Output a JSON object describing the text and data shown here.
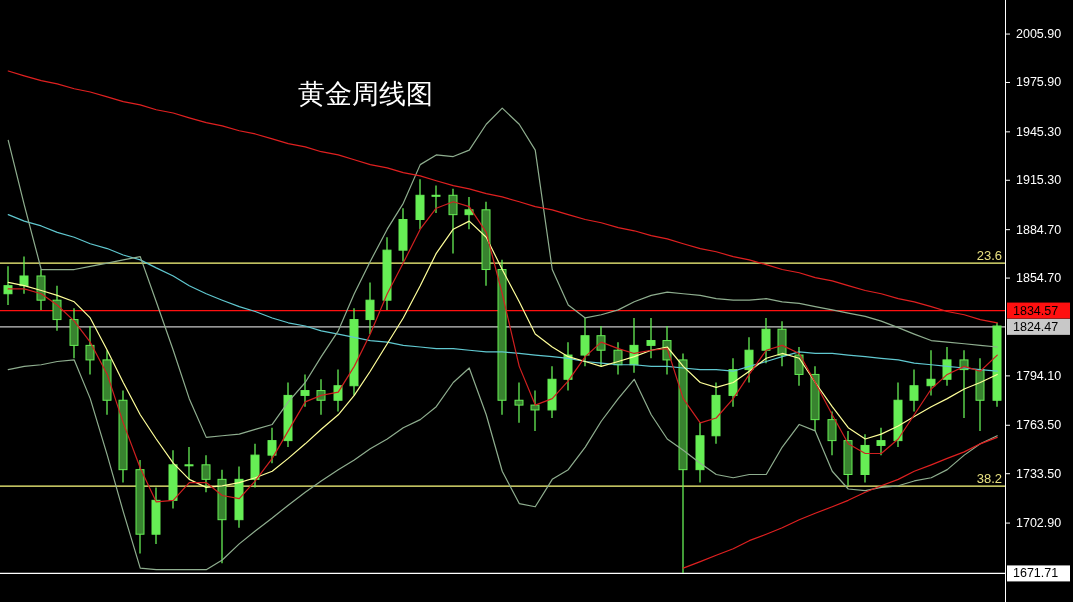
{
  "chart_data": {
    "type": "candlestick",
    "title": "黄金周线图",
    "color": "#66ee55",
    "categories": [
      null,
      null,
      null,
      null,
      null,
      null,
      null,
      null,
      null,
      null,
      null,
      null,
      null,
      null,
      null,
      null,
      null,
      null,
      null,
      null,
      null,
      null,
      null,
      null,
      null,
      null,
      null,
      null,
      null,
      null,
      null,
      null,
      null,
      null,
      null,
      null,
      null,
      null,
      null,
      null,
      null,
      null,
      null,
      null,
      null,
      null,
      null,
      null,
      null,
      null,
      null,
      null,
      null,
      null,
      null,
      null,
      null,
      null,
      null,
      null,
      null
    ],
    "ohlc": [
      [
        1845,
        1862,
        1838,
        1850
      ],
      [
        1850,
        1868,
        1845,
        1856
      ],
      [
        1856,
        1860,
        1835,
        1841
      ],
      [
        1841,
        1850,
        1822,
        1829
      ],
      [
        1829,
        1836,
        1805,
        1813
      ],
      [
        1813,
        1825,
        1795,
        1804
      ],
      [
        1804,
        1810,
        1770,
        1779
      ],
      [
        1779,
        1785,
        1728,
        1736
      ],
      [
        1736,
        1742,
        1684,
        1696
      ],
      [
        1696,
        1725,
        1690,
        1717
      ],
      [
        1717,
        1748,
        1712,
        1739
      ],
      [
        1739,
        1750,
        1730,
        1739
      ],
      [
        1739,
        1745,
        1722,
        1730
      ],
      [
        1730,
        1736,
        1678,
        1705
      ],
      [
        1705,
        1738,
        1700,
        1730
      ],
      [
        1730,
        1752,
        1725,
        1745
      ],
      [
        1745,
        1762,
        1740,
        1754
      ],
      [
        1754,
        1790,
        1750,
        1782
      ],
      [
        1782,
        1795,
        1775,
        1785
      ],
      [
        1785,
        1792,
        1770,
        1779
      ],
      [
        1779,
        1798,
        1772,
        1788
      ],
      [
        1788,
        1836,
        1782,
        1829
      ],
      [
        1829,
        1852,
        1820,
        1841
      ],
      [
        1841,
        1880,
        1835,
        1872
      ],
      [
        1872,
        1898,
        1865,
        1891
      ],
      [
        1891,
        1916,
        1885,
        1906
      ],
      [
        1906,
        1912,
        1895,
        1906
      ],
      [
        1906,
        1910,
        1870,
        1894
      ],
      [
        1894,
        1905,
        1885,
        1897
      ],
      [
        1897,
        1902,
        1850,
        1860
      ],
      [
        1860,
        1866,
        1770,
        1779
      ],
      [
        1779,
        1790,
        1765,
        1776
      ],
      [
        1776,
        1785,
        1760,
        1773
      ],
      [
        1773,
        1800,
        1768,
        1792
      ],
      [
        1792,
        1815,
        1785,
        1807
      ],
      [
        1807,
        1830,
        1800,
        1819
      ],
      [
        1819,
        1825,
        1800,
        1810
      ],
      [
        1810,
        1815,
        1795,
        1801
      ],
      [
        1801,
        1830,
        1796,
        1813
      ],
      [
        1813,
        1830,
        1805,
        1816
      ],
      [
        1816,
        1825,
        1795,
        1804
      ],
      [
        1804,
        1808,
        1672,
        1736
      ],
      [
        1736,
        1765,
        1728,
        1757
      ],
      [
        1757,
        1790,
        1752,
        1782
      ],
      [
        1782,
        1805,
        1775,
        1798
      ],
      [
        1798,
        1818,
        1790,
        1810
      ],
      [
        1810,
        1830,
        1802,
        1823
      ],
      [
        1823,
        1828,
        1800,
        1807
      ],
      [
        1807,
        1812,
        1788,
        1795
      ],
      [
        1795,
        1800,
        1760,
        1767
      ],
      [
        1767,
        1772,
        1745,
        1754
      ],
      [
        1754,
        1760,
        1726,
        1733
      ],
      [
        1733,
        1758,
        1728,
        1751
      ],
      [
        1751,
        1762,
        1745,
        1754
      ],
      [
        1754,
        1790,
        1750,
        1779
      ],
      [
        1779,
        1798,
        1772,
        1788
      ],
      [
        1788,
        1810,
        1782,
        1792
      ],
      [
        1792,
        1812,
        1788,
        1804
      ],
      [
        1804,
        1810,
        1768,
        1798
      ],
      [
        1798,
        1805,
        1760,
        1779
      ],
      [
        1779,
        1827,
        1775,
        1825
      ]
    ],
    "series": [
      {
        "type": "line",
        "color": "#60c8d0",
        "values": [
          1894,
          1890,
          1887,
          1883,
          1880,
          1876,
          1873,
          1869,
          1866,
          1861,
          1856,
          1850,
          1845,
          1841,
          1837,
          1834,
          1830,
          1827,
          1825,
          1822,
          1820,
          1818,
          1816,
          1815,
          1813,
          1812,
          1811,
          1811,
          1810,
          1809,
          1809,
          1808,
          1807,
          1806,
          1805,
          1803,
          1802,
          1801,
          1801,
          1800,
          1800,
          1799,
          1798,
          1798,
          1797,
          1800,
          1803,
          1806,
          1809,
          1808,
          1808,
          1807,
          1806,
          1805,
          1804,
          1802,
          1801,
          1800,
          1799,
          1798,
          1797
        ]
      },
      {
        "type": "line",
        "color": "#8fae8f",
        "values": [
          1940,
          1900,
          1860,
          1860,
          1860,
          1862,
          1864,
          1866,
          1868,
          1840,
          1810,
          1780,
          1756,
          1757,
          1758,
          1761,
          1764,
          1778,
          1790,
          1806,
          1822,
          1845,
          1865,
          1885,
          1901,
          1925,
          1931,
          1930,
          1934,
          1950,
          1960,
          1950,
          1934,
          1860,
          1838,
          1830,
          1832,
          1835,
          1840,
          1844,
          1846,
          1845,
          1844,
          1842,
          1841,
          1841,
          1842,
          1840,
          1839,
          1837,
          1835,
          1833,
          1831,
          1828,
          1824,
          1820,
          1816,
          1815,
          1814,
          1813,
          1812
        ]
      },
      {
        "type": "line",
        "color": "#8fae8f",
        "values": [
          1798,
          1800,
          1801,
          1803,
          1804,
          1780,
          1745,
          1710,
          1675,
          1674,
          1674,
          1674,
          1674,
          1680,
          1690,
          1698,
          1706,
          1714,
          1722,
          1729,
          1736,
          1742,
          1749,
          1755,
          1762,
          1767,
          1775,
          1790,
          1799,
          1770,
          1735,
          1715,
          1713,
          1730,
          1736,
          1750,
          1766,
          1780,
          1792,
          1770,
          1755,
          1748,
          1740,
          1733,
          1731,
          1733,
          1733,
          1750,
          1764,
          1760,
          1735,
          1724,
          1723,
          1725,
          1726,
          1729,
          1731,
          1736,
          1745,
          1752,
          1757
        ]
      },
      {
        "type": "line",
        "color": "#ffff99",
        "values": [
          1852,
          1850,
          1847,
          1844,
          1840,
          1830,
          1810,
          1790,
          1770,
          1755,
          1740,
          1730,
          1725,
          1726,
          1728,
          1731,
          1735,
          1743,
          1752,
          1761,
          1770,
          1782,
          1797,
          1814,
          1830,
          1850,
          1870,
          1885,
          1890,
          1880,
          1860,
          1840,
          1820,
          1812,
          1806,
          1803,
          1800,
          1803,
          1806,
          1810,
          1812,
          1800,
          1790,
          1787,
          1790,
          1797,
          1805,
          1808,
          1805,
          1790,
          1775,
          1762,
          1755,
          1758,
          1763,
          1769,
          1775,
          1780,
          1786,
          1790,
          1795
        ]
      },
      {
        "type": "line",
        "color": "#d02020",
        "values": [
          1848,
          1848,
          1845,
          1838,
          1828,
          1815,
          1795,
          1765,
          1737,
          1716,
          1717,
          1728,
          1728,
          1720,
          1718,
          1729,
          1743,
          1760,
          1778,
          1782,
          1784,
          1800,
          1820,
          1845,
          1864,
          1885,
          1898,
          1902,
          1899,
          1883,
          1845,
          1800,
          1776,
          1780,
          1791,
          1806,
          1815,
          1811,
          1808,
          1810,
          1811,
          1780,
          1765,
          1768,
          1780,
          1795,
          1810,
          1813,
          1808,
          1790,
          1770,
          1752,
          1746,
          1746,
          1755,
          1770,
          1786,
          1795,
          1800,
          1797,
          1807
        ]
      },
      {
        "type": "line",
        "color": "#e02020",
        "values": [
          1983,
          1980,
          1977,
          1975,
          1972,
          1970,
          1967,
          1964,
          1962,
          1959,
          1957,
          1954,
          1951,
          1949,
          1946,
          1944,
          1941,
          1938,
          1936,
          1933,
          1931,
          1928,
          1925,
          1923,
          1920,
          1918,
          1915,
          1912,
          1910,
          1907,
          1905,
          1902,
          1899,
          1897,
          1894,
          1891,
          1889,
          1886,
          1884,
          1881,
          1879,
          1876,
          1873,
          1871,
          1868,
          1866,
          1863,
          1860,
          1858,
          1855,
          1853,
          1850,
          1847,
          1845,
          1842,
          1840,
          1837,
          1834,
          1832,
          1829,
          1827
        ]
      },
      {
        "type": "line",
        "color": "#e02020",
        "values": [
          null,
          null,
          null,
          null,
          null,
          null,
          null,
          null,
          null,
          null,
          null,
          null,
          null,
          null,
          null,
          null,
          null,
          null,
          null,
          null,
          null,
          null,
          null,
          null,
          null,
          null,
          null,
          null,
          null,
          null,
          null,
          null,
          null,
          null,
          null,
          null,
          null,
          null,
          null,
          null,
          null,
          1675,
          1679,
          1683,
          1687,
          1692,
          1696,
          1700,
          1705,
          1709,
          1713,
          1717,
          1722,
          1726,
          1730,
          1735,
          1739,
          1743,
          1747,
          1752,
          1756
        ]
      }
    ],
    "ref_lines": [
      {
        "axis": "y",
        "value": 1864,
        "color": "#ffff80"
      },
      {
        "axis": "y",
        "value": 1834.57,
        "label": "1834.57",
        "color": "#ff1010"
      },
      {
        "axis": "y",
        "value": 1824.47,
        "label": "1824.47",
        "color": "#c8c8c8"
      },
      {
        "axis": "y",
        "value": 1725.8,
        "color": "#ffff80"
      },
      {
        "axis": "y",
        "value": 1671.71,
        "label": "1671.71",
        "color": "#ffffff"
      }
    ],
    "annotations": [
      {
        "text": "23.6",
        "y": 1864
      },
      {
        "text": "38.2",
        "y": 1725.8
      }
    ],
    "ylim": [
      1654,
      2027
    ],
    "yticks": [
      {
        "value": 2005.9,
        "label": "2005.90"
      },
      {
        "value": 1975.9,
        "label": "1975.90"
      },
      {
        "value": 1945.3,
        "label": "1945.30"
      },
      {
        "value": 1915.3,
        "label": "1915.30"
      },
      {
        "value": 1884.7,
        "label": "1884.70"
      },
      {
        "value": 1854.7,
        "label": "1854.70"
      },
      {
        "value": 1794.1,
        "label": "1794.10"
      },
      {
        "value": 1763.5,
        "label": "1763.50"
      },
      {
        "value": 1733.5,
        "label": "1733.50"
      },
      {
        "value": 1702.9,
        "label": "1702.90"
      }
    ],
    "tick_labels": "y"
  }
}
